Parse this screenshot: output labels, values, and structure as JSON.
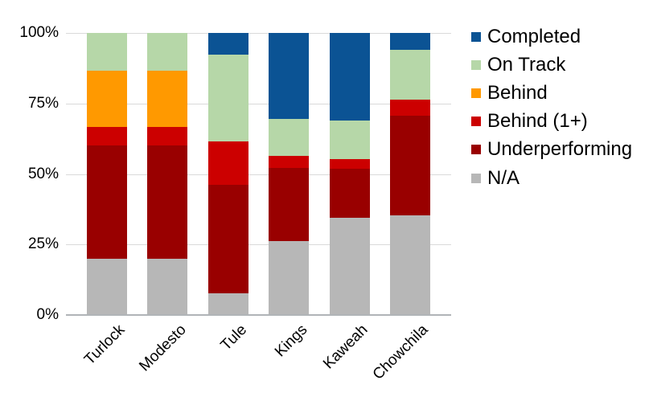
{
  "chart_data": {
    "type": "bar",
    "stacked": true,
    "stacked_mode": "percent",
    "title": "",
    "xlabel": "",
    "ylabel": "",
    "categories": [
      "Turlock",
      "Modesto",
      "Tule",
      "Kings",
      "Kaweah",
      "Chowchila"
    ],
    "series": [
      {
        "name": "N/A",
        "color": "#b7b7b7",
        "values": [
          20,
          20,
          7.7,
          26.1,
          34.5,
          35.3
        ]
      },
      {
        "name": "Underperforming",
        "color": "#990000",
        "values": [
          40,
          40,
          38.5,
          26.1,
          17.2,
          35.3
        ]
      },
      {
        "name": "Behind (1+)",
        "color": "#cc0000",
        "values": [
          6.7,
          6.7,
          15.4,
          4.3,
          3.4,
          5.9
        ]
      },
      {
        "name": "Behind",
        "color": "#ff9900",
        "values": [
          20,
          20,
          0,
          0,
          0,
          0
        ]
      },
      {
        "name": "On Track",
        "color": "#b6d7a8",
        "values": [
          13.3,
          13.3,
          30.8,
          13.0,
          13.8,
          17.6
        ]
      },
      {
        "name": "Completed",
        "color": "#0b5394",
        "values": [
          0,
          0,
          7.7,
          30.4,
          31.0,
          5.9
        ]
      }
    ],
    "y_axis": {
      "min": 0,
      "max": 100,
      "grid": true,
      "ticks": [
        {
          "label": "100%",
          "value": 100
        },
        {
          "label": "75%",
          "value": 75
        },
        {
          "label": "50%",
          "value": 50
        },
        {
          "label": "25%",
          "value": 25
        },
        {
          "label": "0%",
          "value": 0
        }
      ]
    },
    "legend": {
      "position": "right",
      "items": [
        "Completed",
        "On Track",
        "Behind",
        "Behind (1+)",
        "Underperforming",
        "N/A"
      ]
    },
    "colors": {
      "gridline": "#dadada",
      "axis_line": "#b0b4b7",
      "background": "#ffffff",
      "text": "#000000"
    }
  }
}
